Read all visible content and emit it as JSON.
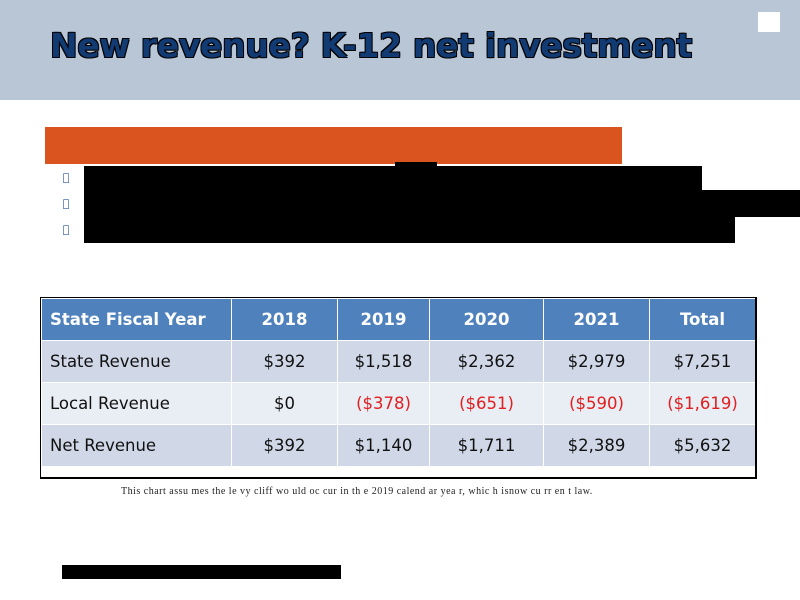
{
  "title": "New revenue? K-12 net investment",
  "bullets": [
    "",
    "",
    ""
  ],
  "table": {
    "headers": [
      "State Fiscal Year",
      "2018",
      "2019",
      "2020",
      "2021",
      "Total"
    ],
    "rows": [
      {
        "label": "State Revenue",
        "values": [
          "$392",
          "$1,518",
          "$2,362",
          "$2,979",
          "$7,251"
        ]
      },
      {
        "label": "Local Revenue",
        "values": [
          "$0",
          "($378)",
          "($651)",
          "($590)",
          "($1,619)"
        ]
      },
      {
        "label": "Net Revenue",
        "values": [
          "$392",
          "$1,140",
          "$1,711",
          "$2,389",
          "$5,632"
        ]
      }
    ]
  },
  "footnote": "This chart assu mes the le vy cliff wo uld oc cur in th e 2019 calend ar yea r, whic h isnow cu rr en t law.",
  "colors": {
    "header_band": "#b9c6d6",
    "title": "#123a73",
    "accent_bar": "#d9541e",
    "table_header": "#4f81bd",
    "negative": "#e02020"
  }
}
